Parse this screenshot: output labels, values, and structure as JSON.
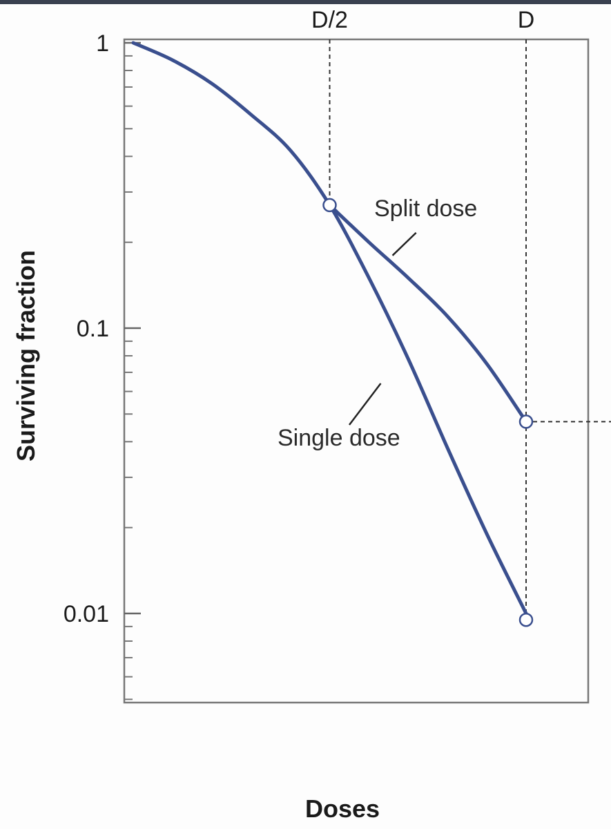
{
  "chart_data": {
    "type": "line",
    "xlabel": "Doses",
    "ylabel": "Surviving fraction",
    "yscale": "log",
    "ylim": [
      0.004,
      1.1
    ],
    "y_ticks": [
      {
        "value": 1,
        "label": "1"
      },
      {
        "value": 0.1,
        "label": "0.1"
      },
      {
        "value": 0.01,
        "label": "0.01"
      }
    ],
    "x_markers": [
      {
        "value": 0.5,
        "label": "D/2"
      },
      {
        "value": 1,
        "label": "D"
      }
    ],
    "xlim": [
      0,
      1.16
    ],
    "grid": false,
    "series": [
      {
        "name": "Single dose",
        "color": "#3a4f8e",
        "x": [
          0,
          0.1,
          0.2,
          0.3,
          0.4,
          0.5,
          0.6,
          0.7,
          0.8,
          0.9,
          1.0
        ],
        "y": [
          1.0,
          0.87,
          0.72,
          0.56,
          0.42,
          0.27,
          0.15,
          0.078,
          0.038,
          0.019,
          0.01
        ]
      },
      {
        "name": "Split dose",
        "color": "#3a4f8e",
        "x": [
          0.5,
          0.6,
          0.7,
          0.8,
          0.9,
          1.0
        ],
        "y": [
          0.27,
          0.2,
          0.15,
          0.11,
          0.075,
          0.047
        ]
      }
    ],
    "markers": [
      {
        "x": 0.5,
        "y": 0.27
      },
      {
        "x": 1.0,
        "y": 0.047
      },
      {
        "x": 1.0,
        "y": 0.0095
      }
    ],
    "annotations": [
      {
        "text": "Split dose",
        "series": "Split dose"
      },
      {
        "text": "Single dose",
        "series": "Single dose"
      }
    ]
  }
}
